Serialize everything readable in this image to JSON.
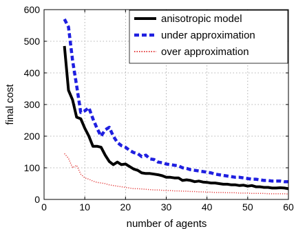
{
  "chart_data": {
    "type": "line",
    "xlabel": "number of agents",
    "ylabel": "final cost",
    "xlim": [
      0,
      60
    ],
    "ylim": [
      0,
      600
    ],
    "xticks": [
      0,
      10,
      20,
      30,
      40,
      50,
      60
    ],
    "yticks": [
      0,
      100,
      200,
      300,
      400,
      500,
      600
    ],
    "grid": true,
    "legend_position": "top-right",
    "series": [
      {
        "name": "anisotropic model",
        "color": "#000000",
        "style": "solid",
        "x": [
          5,
          6,
          7,
          8,
          9,
          10,
          11,
          12,
          13,
          14,
          15,
          16,
          17,
          18,
          19,
          20,
          21,
          22,
          23,
          24,
          25,
          26,
          27,
          28,
          29,
          30,
          31,
          32,
          33,
          34,
          35,
          36,
          37,
          38,
          39,
          40,
          41,
          42,
          43,
          44,
          45,
          46,
          47,
          48,
          49,
          50,
          51,
          52,
          53,
          54,
          55,
          56,
          57,
          58,
          59,
          60
        ],
        "values": [
          485,
          345,
          315,
          260,
          255,
          225,
          200,
          168,
          168,
          165,
          140,
          120,
          110,
          118,
          110,
          112,
          104,
          96,
          92,
          84,
          82,
          82,
          80,
          78,
          75,
          70,
          70,
          68,
          68,
          60,
          62,
          60,
          56,
          58,
          55,
          54,
          52,
          52,
          50,
          48,
          48,
          46,
          46,
          44,
          45,
          42,
          44,
          40,
          40,
          38,
          38,
          36,
          36,
          37,
          36,
          34
        ]
      },
      {
        "name": "under approximation",
        "color": "#1f1fe0",
        "style": "dashed",
        "x": [
          5,
          6,
          7,
          8,
          9,
          10,
          11,
          12,
          13,
          14,
          15,
          16,
          17,
          18,
          19,
          20,
          21,
          22,
          23,
          24,
          25,
          26,
          27,
          28,
          29,
          30,
          31,
          32,
          33,
          34,
          35,
          36,
          37,
          38,
          39,
          40,
          41,
          42,
          43,
          44,
          45,
          46,
          47,
          48,
          49,
          50,
          51,
          52,
          53,
          54,
          55,
          56,
          57,
          58,
          59,
          60
        ],
        "values": [
          570,
          545,
          440,
          360,
          275,
          280,
          290,
          255,
          225,
          200,
          220,
          228,
          200,
          180,
          170,
          165,
          155,
          148,
          145,
          135,
          140,
          128,
          126,
          118,
          116,
          112,
          110,
          108,
          106,
          100,
          98,
          94,
          92,
          90,
          88,
          86,
          84,
          80,
          78,
          76,
          74,
          72,
          70,
          70,
          68,
          66,
          64,
          64,
          62,
          60,
          60,
          58,
          58,
          58,
          56,
          56
        ]
      },
      {
        "name": "over approximation",
        "color": "#e33b3b",
        "style": "dotted",
        "x": [
          5,
          6,
          7,
          8,
          9,
          10,
          11,
          12,
          13,
          14,
          15,
          16,
          17,
          18,
          19,
          20,
          21,
          22,
          23,
          24,
          25,
          26,
          27,
          28,
          29,
          30,
          31,
          32,
          33,
          34,
          35,
          36,
          37,
          38,
          39,
          40,
          41,
          42,
          43,
          44,
          45,
          46,
          47,
          48,
          49,
          50,
          51,
          52,
          53,
          54,
          55,
          56,
          57,
          58,
          59,
          60
        ],
        "values": [
          145,
          130,
          100,
          108,
          80,
          68,
          64,
          58,
          54,
          52,
          50,
          46,
          44,
          42,
          40,
          38,
          36,
          34,
          34,
          33,
          32,
          31,
          30,
          30,
          29,
          28,
          28,
          27,
          27,
          26,
          26,
          25,
          25,
          24,
          24,
          23,
          23,
          22,
          22,
          22,
          21,
          21,
          21,
          20,
          20,
          20,
          19,
          19,
          19,
          19,
          18,
          18,
          18,
          18,
          18,
          17
        ]
      }
    ]
  }
}
